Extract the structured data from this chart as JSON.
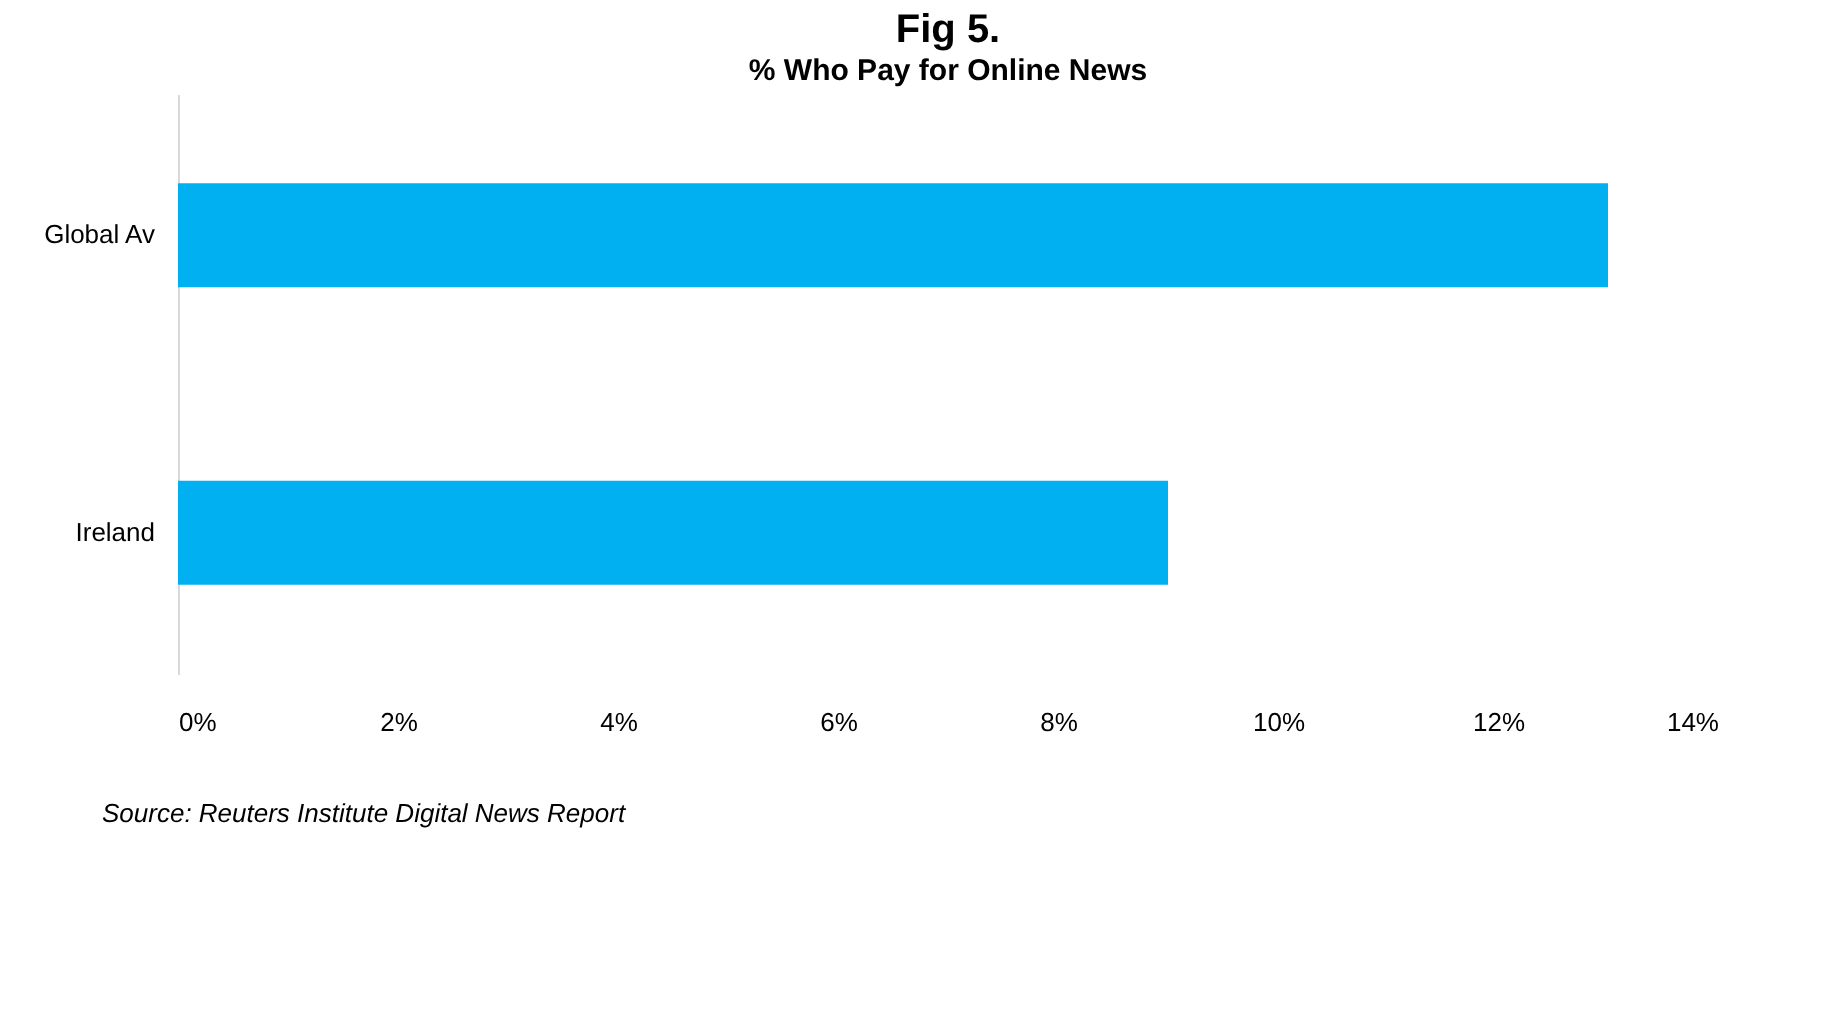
{
  "chart_data": {
    "type": "bar",
    "orientation": "horizontal",
    "title": "Fig 5.",
    "subtitle": "% Who Pay for Online News",
    "categories": [
      "Global Av",
      "Ireland"
    ],
    "values": [
      13,
      9
    ],
    "color": "#00b0f0",
    "xlim": [
      0,
      14
    ],
    "xticks": [
      {
        "value": 0,
        "label": "0%"
      },
      {
        "value": 2,
        "label": "2%"
      },
      {
        "value": 4,
        "label": "4%"
      },
      {
        "value": 6,
        "label": "6%"
      },
      {
        "value": 8,
        "label": "8%"
      },
      {
        "value": 10,
        "label": "10%"
      },
      {
        "value": 12,
        "label": "12%"
      },
      {
        "value": 14,
        "label": "14%"
      }
    ],
    "grid": false,
    "annotations": [
      "Source: Reuters Institute Digital News Report"
    ]
  }
}
